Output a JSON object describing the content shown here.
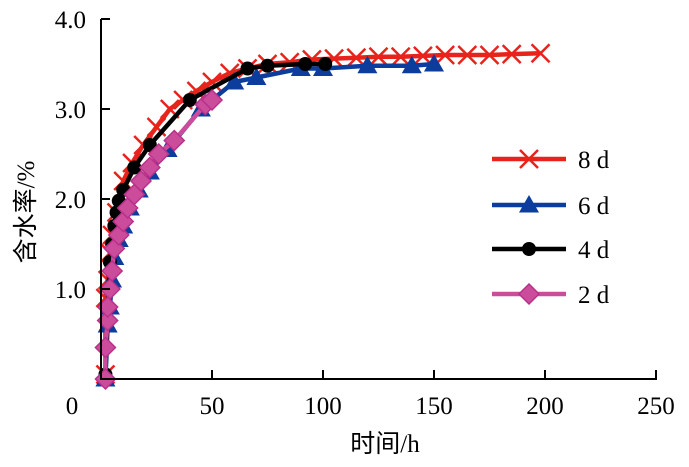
{
  "chart_data": {
    "type": "line",
    "title": "",
    "xlabel": "时间/h",
    "ylabel": "含水率/%",
    "xlim": [
      0,
      250
    ],
    "ylim": [
      0,
      4.0
    ],
    "xticks": [
      "0",
      "50",
      "100",
      "150",
      "200",
      "250"
    ],
    "xtick_values": [
      0,
      50,
      100,
      150,
      200,
      250
    ],
    "yticks": [
      "1.0",
      "2.0",
      "3.0",
      "4.0"
    ],
    "ytick_values": [
      1,
      2,
      3,
      4
    ],
    "grid": false,
    "legend_position": "right",
    "series": [
      {
        "name": "8 d",
        "color": "#e8231c",
        "marker": "x",
        "x": [
          2,
          2,
          3,
          4,
          5,
          7,
          10,
          14,
          19,
          25,
          31,
          37,
          43,
          50,
          58,
          66,
          75,
          85,
          95,
          105,
          115,
          125,
          135,
          145,
          155,
          165,
          175,
          185,
          198
        ],
        "y": [
          0.05,
          0.9,
          1.1,
          1.4,
          1.6,
          1.85,
          2.2,
          2.4,
          2.6,
          2.8,
          3.0,
          3.1,
          3.2,
          3.3,
          3.4,
          3.45,
          3.5,
          3.52,
          3.55,
          3.56,
          3.57,
          3.58,
          3.58,
          3.59,
          3.6,
          3.6,
          3.6,
          3.61,
          3.62
        ]
      },
      {
        "name": "6 d",
        "color": "#0c3c9c",
        "marker": "triangle",
        "x": [
          2,
          3,
          4,
          5,
          6,
          8,
          10,
          13,
          17,
          22,
          30,
          45,
          60,
          70,
          90,
          100,
          120,
          140,
          150
        ],
        "y": [
          0,
          0.6,
          0.8,
          1.1,
          1.35,
          1.55,
          1.7,
          1.9,
          2.1,
          2.3,
          2.55,
          3.0,
          3.3,
          3.35,
          3.45,
          3.45,
          3.48,
          3.48,
          3.5
        ]
      },
      {
        "name": "4 d",
        "color": "#000000",
        "marker": "circle",
        "x": [
          2,
          3,
          4,
          5,
          6,
          7,
          8,
          10,
          15,
          22,
          40,
          66,
          75,
          92,
          101
        ],
        "y": [
          0.05,
          0.8,
          1.3,
          1.5,
          1.7,
          1.85,
          1.98,
          2.1,
          2.35,
          2.6,
          3.1,
          3.45,
          3.48,
          3.5,
          3.5
        ]
      },
      {
        "name": "2 d",
        "color": "#cc4c9c",
        "marker": "diamond",
        "x": [
          2,
          2,
          3,
          3,
          4,
          5,
          6,
          8,
          10,
          12,
          15,
          18,
          22,
          26,
          33,
          47,
          50
        ],
        "y": [
          0.0,
          0.35,
          0.65,
          0.8,
          1.0,
          1.2,
          1.45,
          1.6,
          1.75,
          1.9,
          2.05,
          2.2,
          2.35,
          2.5,
          2.65,
          3.05,
          3.1
        ]
      }
    ]
  }
}
